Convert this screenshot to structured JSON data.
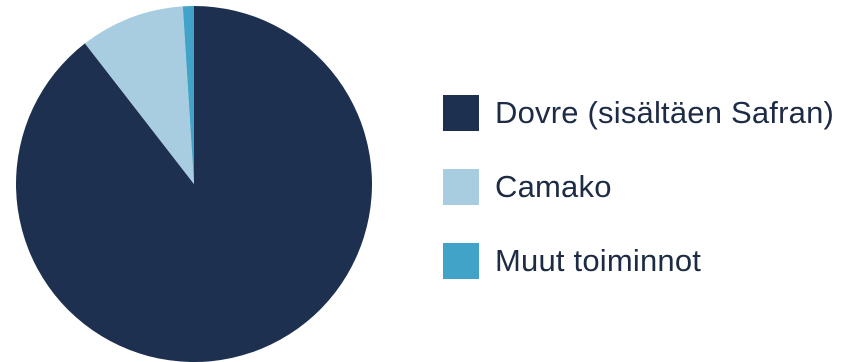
{
  "chart_data": {
    "type": "pie",
    "title": "",
    "legend_position": "right",
    "start_angle": "12 o'clock, clockwise",
    "slices": [
      {
        "label": "Dovre (sisältäen Safran)",
        "value": 89.5,
        "color": "#1e3050"
      },
      {
        "label": "Camako",
        "value": 9.5,
        "color": "#a9cde0"
      },
      {
        "label": "Muut toiminnot",
        "value": 1.0,
        "color": "#41a3c8"
      }
    ]
  }
}
